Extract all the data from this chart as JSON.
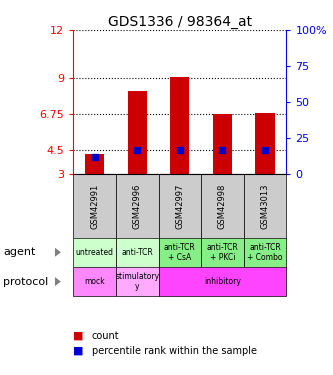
{
  "title": "GDS1336 / 98364_at",
  "samples": [
    "GSM42991",
    "GSM42996",
    "GSM42997",
    "GSM42998",
    "GSM43013"
  ],
  "count_values": [
    4.3,
    8.2,
    9.05,
    6.75,
    6.8
  ],
  "percentile_values": [
    4.1,
    4.55,
    4.55,
    4.5,
    4.55
  ],
  "ylim_left": [
    3,
    12
  ],
  "yticks_left": [
    3,
    4.5,
    6.75,
    9,
    12
  ],
  "ytick_labels_left": [
    "3",
    "4.5",
    "6.75",
    "9",
    "12"
  ],
  "yticks_right": [
    0,
    25,
    50,
    75,
    100
  ],
  "ytick_labels_right": [
    "0",
    "25",
    "50",
    "75",
    "100%"
  ],
  "bar_color": "#cc0000",
  "percentile_color": "#0000cc",
  "bar_width": 0.45,
  "agent_labels": [
    "untreated",
    "anti-TCR",
    "anti-TCR\n+ CsA",
    "anti-TCR\n+ PKCi",
    "anti-TCR\n+ Combo"
  ],
  "agent_bg_light": "#ccffcc",
  "agent_bg_dark": "#88ee88",
  "protocol_mock_color": "#ff88ff",
  "protocol_stim_color": "#ffaaff",
  "protocol_inhib_color": "#ff44ff",
  "sample_bg_color": "#cccccc",
  "legend_count_color": "#cc0000",
  "legend_percentile_color": "#0000cc",
  "gridline_yticks": [
    4.5,
    6.75,
    9,
    12
  ]
}
